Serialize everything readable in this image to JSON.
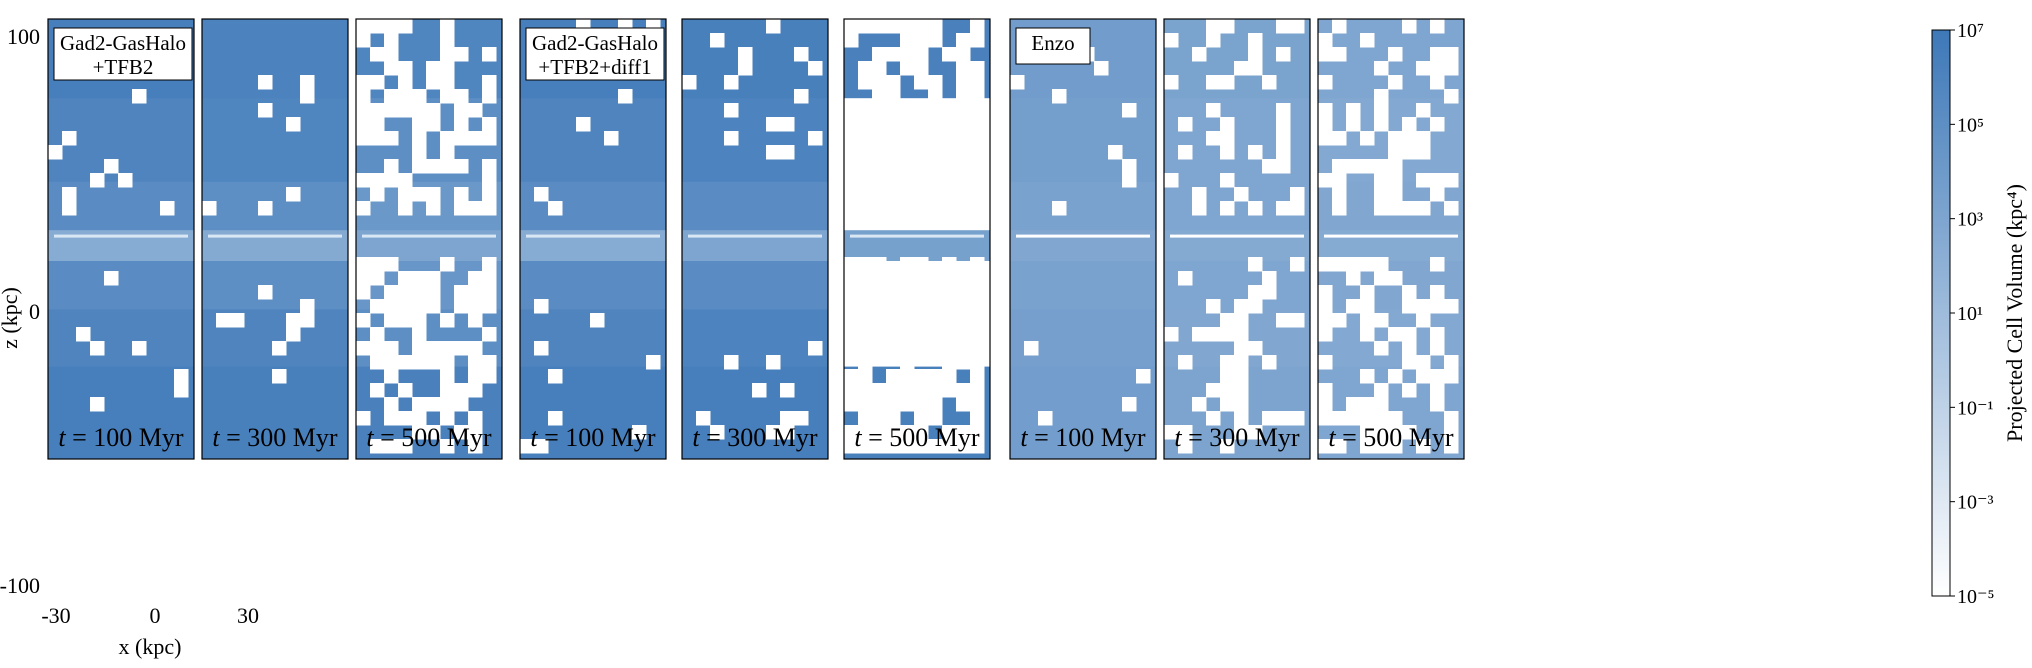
{
  "chart_data": {
    "type": "heatmap",
    "colorbar": {
      "label": "Projected Cell Volume (kpc⁴)",
      "scale": "log",
      "range": [
        -5,
        7
      ],
      "tick_exponents": [
        7,
        5,
        3,
        1,
        -1,
        -3,
        -5
      ],
      "tick_labels": [
        "10⁷",
        "10⁵",
        "10³",
        "10¹",
        "10⁻¹",
        "10⁻³",
        "10⁻⁵"
      ],
      "colormap": [
        "#ffffff",
        "#6699cc"
      ]
    },
    "axes": {
      "xlabel": "x (kpc)",
      "ylabel": "z (kpc)",
      "xlim": [
        -30,
        30
      ],
      "ylim": [
        -100,
        100
      ],
      "xticks": [
        "-30",
        "0",
        "30"
      ],
      "yticks": [
        "100",
        "0",
        "-100"
      ]
    },
    "time_prefix": "t",
    "time_suffix": " = ",
    "groups": [
      {
        "label_lines": [
          "Gad2-GasHalo",
          "+TFB2"
        ],
        "panels": [
          {
            "time": "100 Myr",
            "row_log_volume": [
              6.4,
              5.9,
              5.2,
              2.4,
              5.2,
              5.9,
              6.4
            ],
            "empty_fraction": 0.06
          },
          {
            "time": "300 Myr",
            "row_log_volume": [
              6.1,
              5.8,
              5.0,
              2.6,
              5.0,
              5.9,
              6.3
            ],
            "empty_fraction": 0.04
          },
          {
            "time": "500 Myr",
            "row_log_volume": [
              5.8,
              5.0,
              4.2,
              3.0,
              4.3,
              5.0,
              6.2
            ],
            "empty_fraction": 0.58
          }
        ]
      },
      {
        "label_lines": [
          "Gad2-GasHalo",
          "+TFB2+diff1"
        ],
        "panels": [
          {
            "time": "100 Myr",
            "row_log_volume": [
              6.4,
              5.9,
              5.2,
              2.4,
              5.2,
              5.9,
              6.4
            ],
            "empty_fraction": 0.06
          },
          {
            "time": "300 Myr",
            "row_log_volume": [
              6.3,
              6.0,
              5.2,
              3.0,
              5.2,
              6.0,
              6.4
            ],
            "empty_fraction": 0.08
          },
          {
            "time": "500 Myr",
            "row_log_volume": [
              6.2,
              0,
              0,
              3.4,
              0,
              0,
              6.3
            ],
            "empty_fraction": 0.72
          }
        ]
      },
      {
        "label_lines": [
          "Enzo"
        ],
        "panels": [
          {
            "time": "100 Myr",
            "row_log_volume": [
              3.8,
              3.6,
              3.3,
              2.8,
              3.3,
              3.5,
              3.7
            ],
            "empty_fraction": 0.03
          },
          {
            "time": "300 Myr",
            "row_log_volume": [
              3.2,
              2.9,
              2.9,
              2.6,
              2.9,
              2.8,
              3.1
            ],
            "empty_fraction": 0.3
          },
          {
            "time": "500 Myr",
            "row_log_volume": [
              2.9,
              2.7,
              2.8,
              2.5,
              2.8,
              2.7,
              2.9
            ],
            "empty_fraction": 0.45
          }
        ]
      }
    ]
  }
}
